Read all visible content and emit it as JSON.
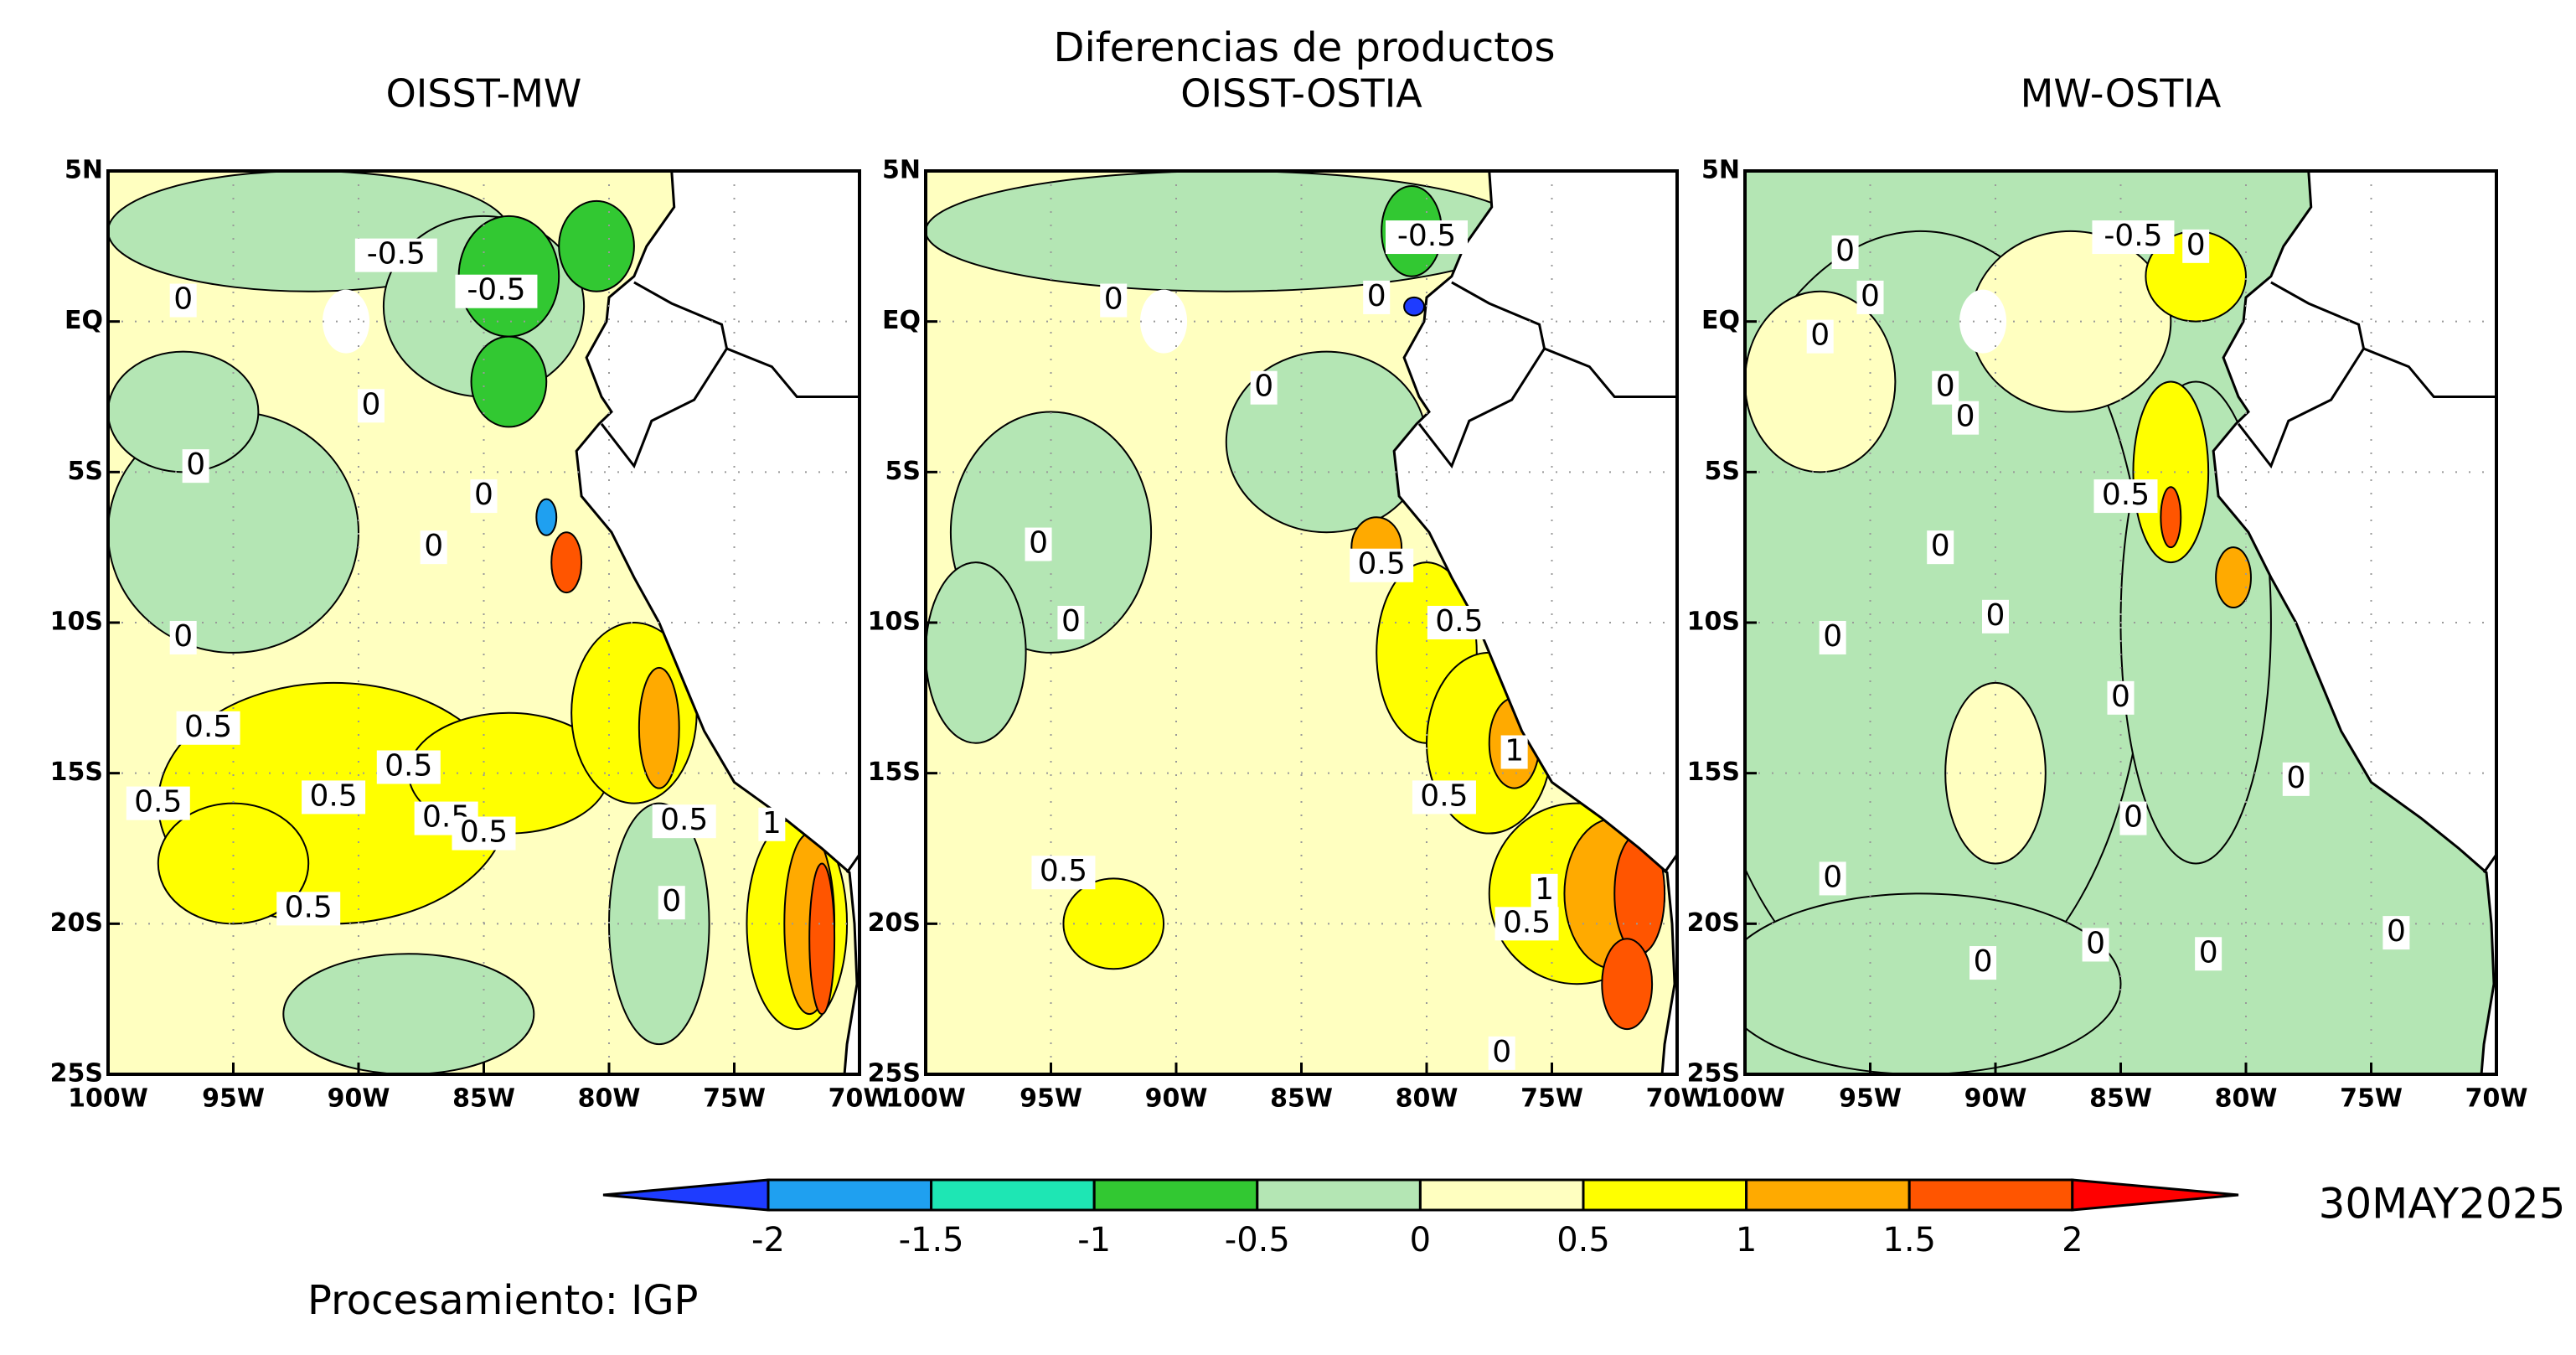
{
  "title": "Diferencias de productos",
  "panels": [
    {
      "title": "OISST-MW",
      "contour_labels": [
        "-0.5",
        "-0.5",
        "0",
        "0",
        "0",
        "0",
        "0",
        "0",
        "0.5",
        "0.5",
        "0.5",
        "0.5",
        "0.5",
        "0.5",
        "0.5",
        "0.5",
        "1",
        "0"
      ]
    },
    {
      "title": "OISST-OSTIA",
      "contour_labels": [
        "-0.5",
        "0",
        "0",
        "0",
        "0",
        "0",
        "0.5",
        "0.5",
        "1",
        "0.5",
        "1",
        "0.5",
        "0.5",
        "0"
      ]
    },
    {
      "title": "MW-OSTIA",
      "contour_labels": [
        "0",
        "-0.5",
        "0",
        "0",
        "0",
        "0",
        "0",
        "0.5",
        "0",
        "0",
        "0",
        "0",
        "0",
        "0",
        "0",
        "0",
        "0",
        "0",
        "0"
      ]
    }
  ],
  "lat_ticks": [
    "5N",
    "EQ",
    "5S",
    "10S",
    "15S",
    "20S",
    "25S"
  ],
  "lon_ticks": [
    "100W",
    "95W",
    "90W",
    "85W",
    "80W",
    "75W",
    "70W"
  ],
  "colorbar": {
    "colors": [
      "#1e3cff",
      "#1fa0f0",
      "#1ee6b4",
      "#32c832",
      "#b4e6b4",
      "#ffffc0",
      "#ffff00",
      "#ffaa00",
      "#ff5500",
      "#ff0000"
    ],
    "labels": [
      "-2",
      "-1.5",
      "-1",
      "-0.5",
      "0",
      "0.5",
      "1",
      "1.5",
      "2"
    ]
  },
  "date": "30MAY2025",
  "credit": "Procesamiento: IGP"
}
